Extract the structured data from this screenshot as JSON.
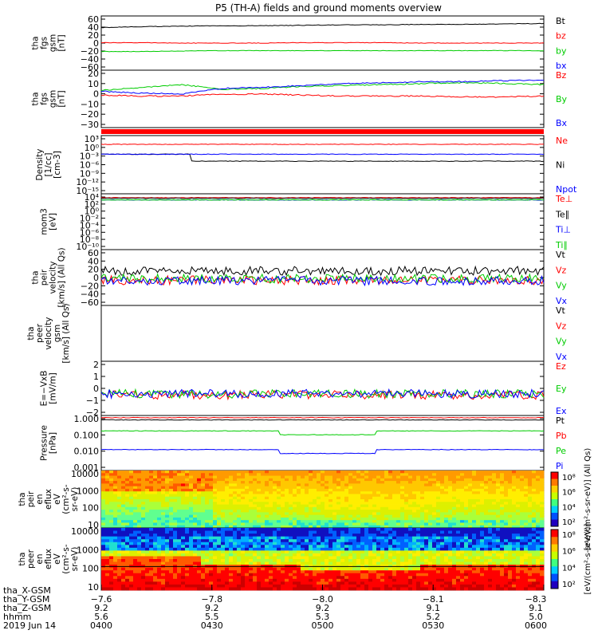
{
  "title": "P5 (TH-A) fields and ground moments overview",
  "colors": {
    "black": "#000000",
    "red": "#ff0000",
    "green": "#00cc00",
    "blue": "#0000ff"
  },
  "chart_data": [
    {
      "id": "fgs-gsm-1",
      "type": "line",
      "ylabel": [
        "tha",
        "fgs",
        "gsm",
        "[nT]"
      ],
      "yticks": [
        "60",
        "40",
        "20",
        "0",
        "−20",
        "−40",
        "−60"
      ],
      "ylim": [
        -60,
        62
      ],
      "series": [
        {
          "name": "Bt",
          "color": "black",
          "values": [
            36,
            38,
            39,
            40,
            40,
            41,
            42,
            42,
            43,
            43,
            44,
            45
          ]
        },
        {
          "name": "bz",
          "color": "red",
          "values": [
            2,
            2,
            1,
            1,
            1,
            2,
            2,
            2,
            1,
            1,
            1,
            1
          ]
        },
        {
          "name": "by",
          "color": "green",
          "values": [
            -18,
            -18,
            -17,
            -16,
            -16,
            -16,
            -16,
            -16,
            -16,
            -16,
            -16,
            -16
          ]
        },
        {
          "name": "bx",
          "color": "blue",
          "values": []
        }
      ]
    },
    {
      "id": "fgs-gsm-2",
      "type": "line",
      "ylabel": [
        "tha",
        "fgs",
        "gsm",
        "[nT]"
      ],
      "yticks": [
        "20",
        "10",
        "0",
        "−10",
        "−20",
        "−30"
      ],
      "ylim": [
        -38,
        22
      ],
      "series": [
        {
          "name": "Bz",
          "color": "red",
          "values": [
            -4,
            -5,
            -5,
            -3,
            -3,
            -4,
            -5,
            -5,
            -5,
            -6,
            -6,
            -5
          ]
        },
        {
          "name": "By",
          "color": "green",
          "values": [
            1,
            4,
            7,
            2,
            3,
            5,
            6,
            7,
            8,
            9,
            8,
            7
          ]
        },
        {
          "name": "Bx",
          "color": "blue",
          "values": [
            0,
            -2,
            -3,
            3,
            4,
            6,
            8,
            9,
            10,
            10,
            11,
            12
          ]
        }
      ]
    },
    {
      "id": "density",
      "type": "line",
      "ylabel": [
        "Density",
        "[1/cc]",
        "[cm-3]"
      ],
      "yticks": [
        "10³",
        "10⁰",
        "10⁻³",
        "10⁻⁶",
        "10⁻⁹",
        "10⁻¹²",
        "10⁻¹⁵"
      ],
      "series": [
        {
          "name": "Ne",
          "color": "red",
          "values": []
        },
        {
          "name": "Ni",
          "color": "black",
          "values": []
        },
        {
          "name": "Npot",
          "color": "blue",
          "values": []
        }
      ]
    },
    {
      "id": "temperature",
      "type": "line",
      "ylabel": [
        "mom3",
        "[eV]"
      ],
      "yticks": [
        "10⁴",
        "10²",
        "10⁰",
        "10⁻²",
        "10⁻⁴",
        "10⁻⁶",
        "10⁻⁸",
        "10⁻¹⁰"
      ],
      "series": [
        {
          "name": "Te⊥",
          "color": "red",
          "values": []
        },
        {
          "name": "Te∥",
          "color": "black",
          "values": []
        },
        {
          "name": "Ti⊥",
          "color": "blue",
          "values": []
        },
        {
          "name": "Ti∥",
          "color": "green",
          "values": []
        }
      ]
    },
    {
      "id": "peir-velocity",
      "type": "line",
      "ylabel": [
        "tha",
        "peir",
        "velocity",
        "[km/s] (All Qs)"
      ],
      "yticks": [
        "60",
        "40",
        "20",
        "0",
        "−20",
        "−40",
        "−60"
      ],
      "ylim": [
        -60,
        60
      ],
      "series": [
        {
          "name": "Vt",
          "color": "black",
          "values": []
        },
        {
          "name": "Vz",
          "color": "red",
          "values": []
        },
        {
          "name": "Vy",
          "color": "green",
          "values": []
        },
        {
          "name": "Vx",
          "color": "blue",
          "values": []
        }
      ]
    },
    {
      "id": "peer-velocity",
      "type": "line",
      "ylabel": [
        "tha",
        "peer",
        "velocity",
        "gsm",
        "[km/s] (All Qs)"
      ],
      "yticks": [],
      "series": [
        {
          "name": "Vt",
          "color": "black",
          "values": []
        },
        {
          "name": "Vz",
          "color": "red",
          "values": []
        },
        {
          "name": "Vy",
          "color": "green",
          "values": []
        },
        {
          "name": "Vx",
          "color": "blue",
          "values": []
        }
      ]
    },
    {
      "id": "efield",
      "type": "line",
      "ylabel": [
        "E=−VxB",
        "[mV/m]"
      ],
      "yticks": [
        "2",
        "1",
        "0",
        "−1",
        "−2"
      ],
      "ylim": [
        -2,
        3
      ],
      "series": [
        {
          "name": "Ez",
          "color": "red",
          "values": []
        },
        {
          "name": "Ey",
          "color": "green",
          "values": []
        },
        {
          "name": "Ex",
          "color": "blue",
          "values": []
        }
      ]
    },
    {
      "id": "pressure",
      "type": "line",
      "ylabel": [
        "Pressure",
        "[nPa]"
      ],
      "yticks": [
        "1.000",
        "0.100",
        "0.010",
        "0.001"
      ],
      "series": [
        {
          "name": "Pt",
          "color": "black",
          "values": []
        },
        {
          "name": "Pb",
          "color": "red",
          "values": []
        },
        {
          "name": "Pe",
          "color": "green",
          "values": []
        },
        {
          "name": "Pi",
          "color": "blue",
          "values": []
        }
      ]
    },
    {
      "id": "peir-en-eflux",
      "type": "heatmap",
      "ylabel": [
        "tha",
        "peir",
        "en",
        "eflux",
        "eV",
        "(cm²-s-",
        "sr-eV)"
      ],
      "yticks": [
        "10000",
        "1000",
        "100",
        "10"
      ],
      "colorbar": {
        "ticks": [
          "10⁸",
          "10⁶",
          "10⁴",
          "10²"
        ],
        "label": "[eV/(cm²-s-sr-eV)] (All Qs)"
      }
    },
    {
      "id": "peer-en-eflux",
      "type": "heatmap",
      "ylabel": [
        "tha",
        "peer",
        "en",
        "eflux",
        "eV",
        "(cm²-s-",
        "sr-eV)"
      ],
      "yticks": [
        "10000",
        "1000",
        "100",
        "10"
      ],
      "colorbar": {
        "ticks": [
          "10⁸",
          "10⁶",
          "10⁴",
          "10²"
        ],
        "label": "[eV/(cm²-s-sr-eV)]"
      }
    }
  ],
  "x_axis": {
    "row_labels": [
      "tha_X-GSM",
      "tha_Y-GSM",
      "tha_Z-GSM",
      "hhmm",
      "2019 Jun 14"
    ],
    "ticks": [
      {
        "x": "−7.6",
        "y": "9.2",
        "z": "5.6",
        "time": "0400"
      },
      {
        "x": "−7.8",
        "y": "9.2",
        "z": "5.5",
        "time": "0430"
      },
      {
        "x": "−8.0",
        "y": "9.2",
        "z": "5.3",
        "time": "0500"
      },
      {
        "x": "−8.1",
        "y": "9.1",
        "z": "5.2",
        "time": "0530"
      },
      {
        "x": "−8.3",
        "y": "9.1",
        "z": "5.0",
        "time": "0600"
      }
    ]
  }
}
